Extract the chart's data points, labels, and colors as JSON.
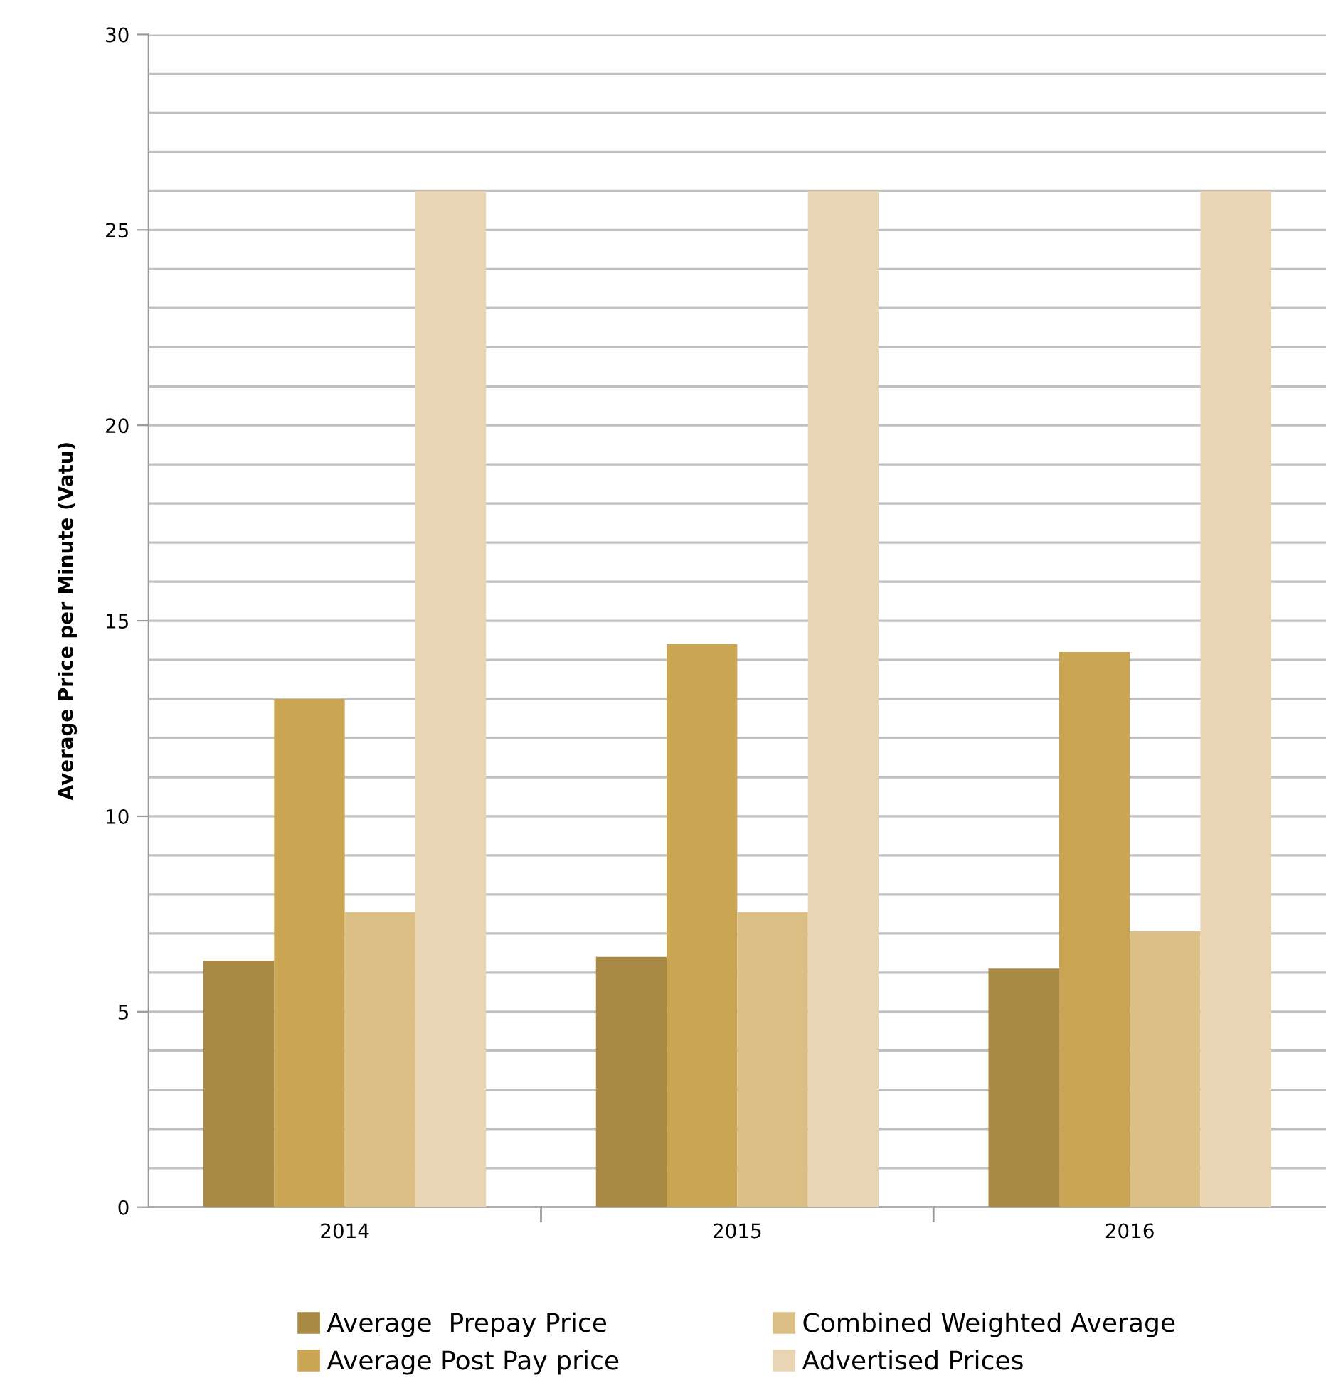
{
  "chart_data": {
    "type": "bar",
    "ylabel": "Average Price per Minute (Vatu)",
    "categories": [
      "2014",
      "2015",
      "2016"
    ],
    "series": [
      {
        "name": "Average  Prepay Price",
        "color": "#a88a45",
        "values": [
          6.3,
          6.4,
          6.1
        ]
      },
      {
        "name": "Average Post Pay price",
        "color": "#c9a554",
        "values": [
          13.0,
          14.4,
          14.2
        ]
      },
      {
        "name": "Combined Weighted Average",
        "color": "#dbbf85",
        "values": [
          7.55,
          7.55,
          7.05
        ]
      },
      {
        "name": "Advertised Prices",
        "color": "#e9d5b3",
        "values": [
          26,
          26,
          26
        ]
      }
    ],
    "ylim": [
      0,
      30
    ],
    "yticks": [
      0,
      {
        "value": 1,
        "label": null
      },
      {
        "value": 2,
        "label": null
      },
      {
        "value": 3,
        "label": null
      },
      {
        "value": 4,
        "label": null
      },
      5,
      {
        "value": 6,
        "label": null
      },
      {
        "value": 7,
        "label": null
      },
      {
        "value": 8,
        "label": null
      },
      {
        "value": 9,
        "label": null
      },
      10,
      {
        "value": 11,
        "label": null
      },
      {
        "value": 12,
        "label": null
      },
      {
        "value": 13,
        "label": null
      },
      {
        "value": 14,
        "label": null
      },
      15,
      {
        "value": 16,
        "label": null
      },
      {
        "value": 17,
        "label": null
      },
      {
        "value": 18,
        "label": null
      },
      {
        "value": 19,
        "label": null
      },
      20,
      {
        "value": 21,
        "label": null
      },
      {
        "value": 22,
        "label": null
      },
      {
        "value": 23,
        "label": null
      },
      {
        "value": 24,
        "label": null
      },
      25,
      {
        "value": 26,
        "label": null
      },
      {
        "value": 27,
        "label": null
      },
      {
        "value": 28,
        "label": null
      },
      {
        "value": 29,
        "label": null
      },
      30
    ],
    "grid": "y",
    "legend": "bottom"
  }
}
